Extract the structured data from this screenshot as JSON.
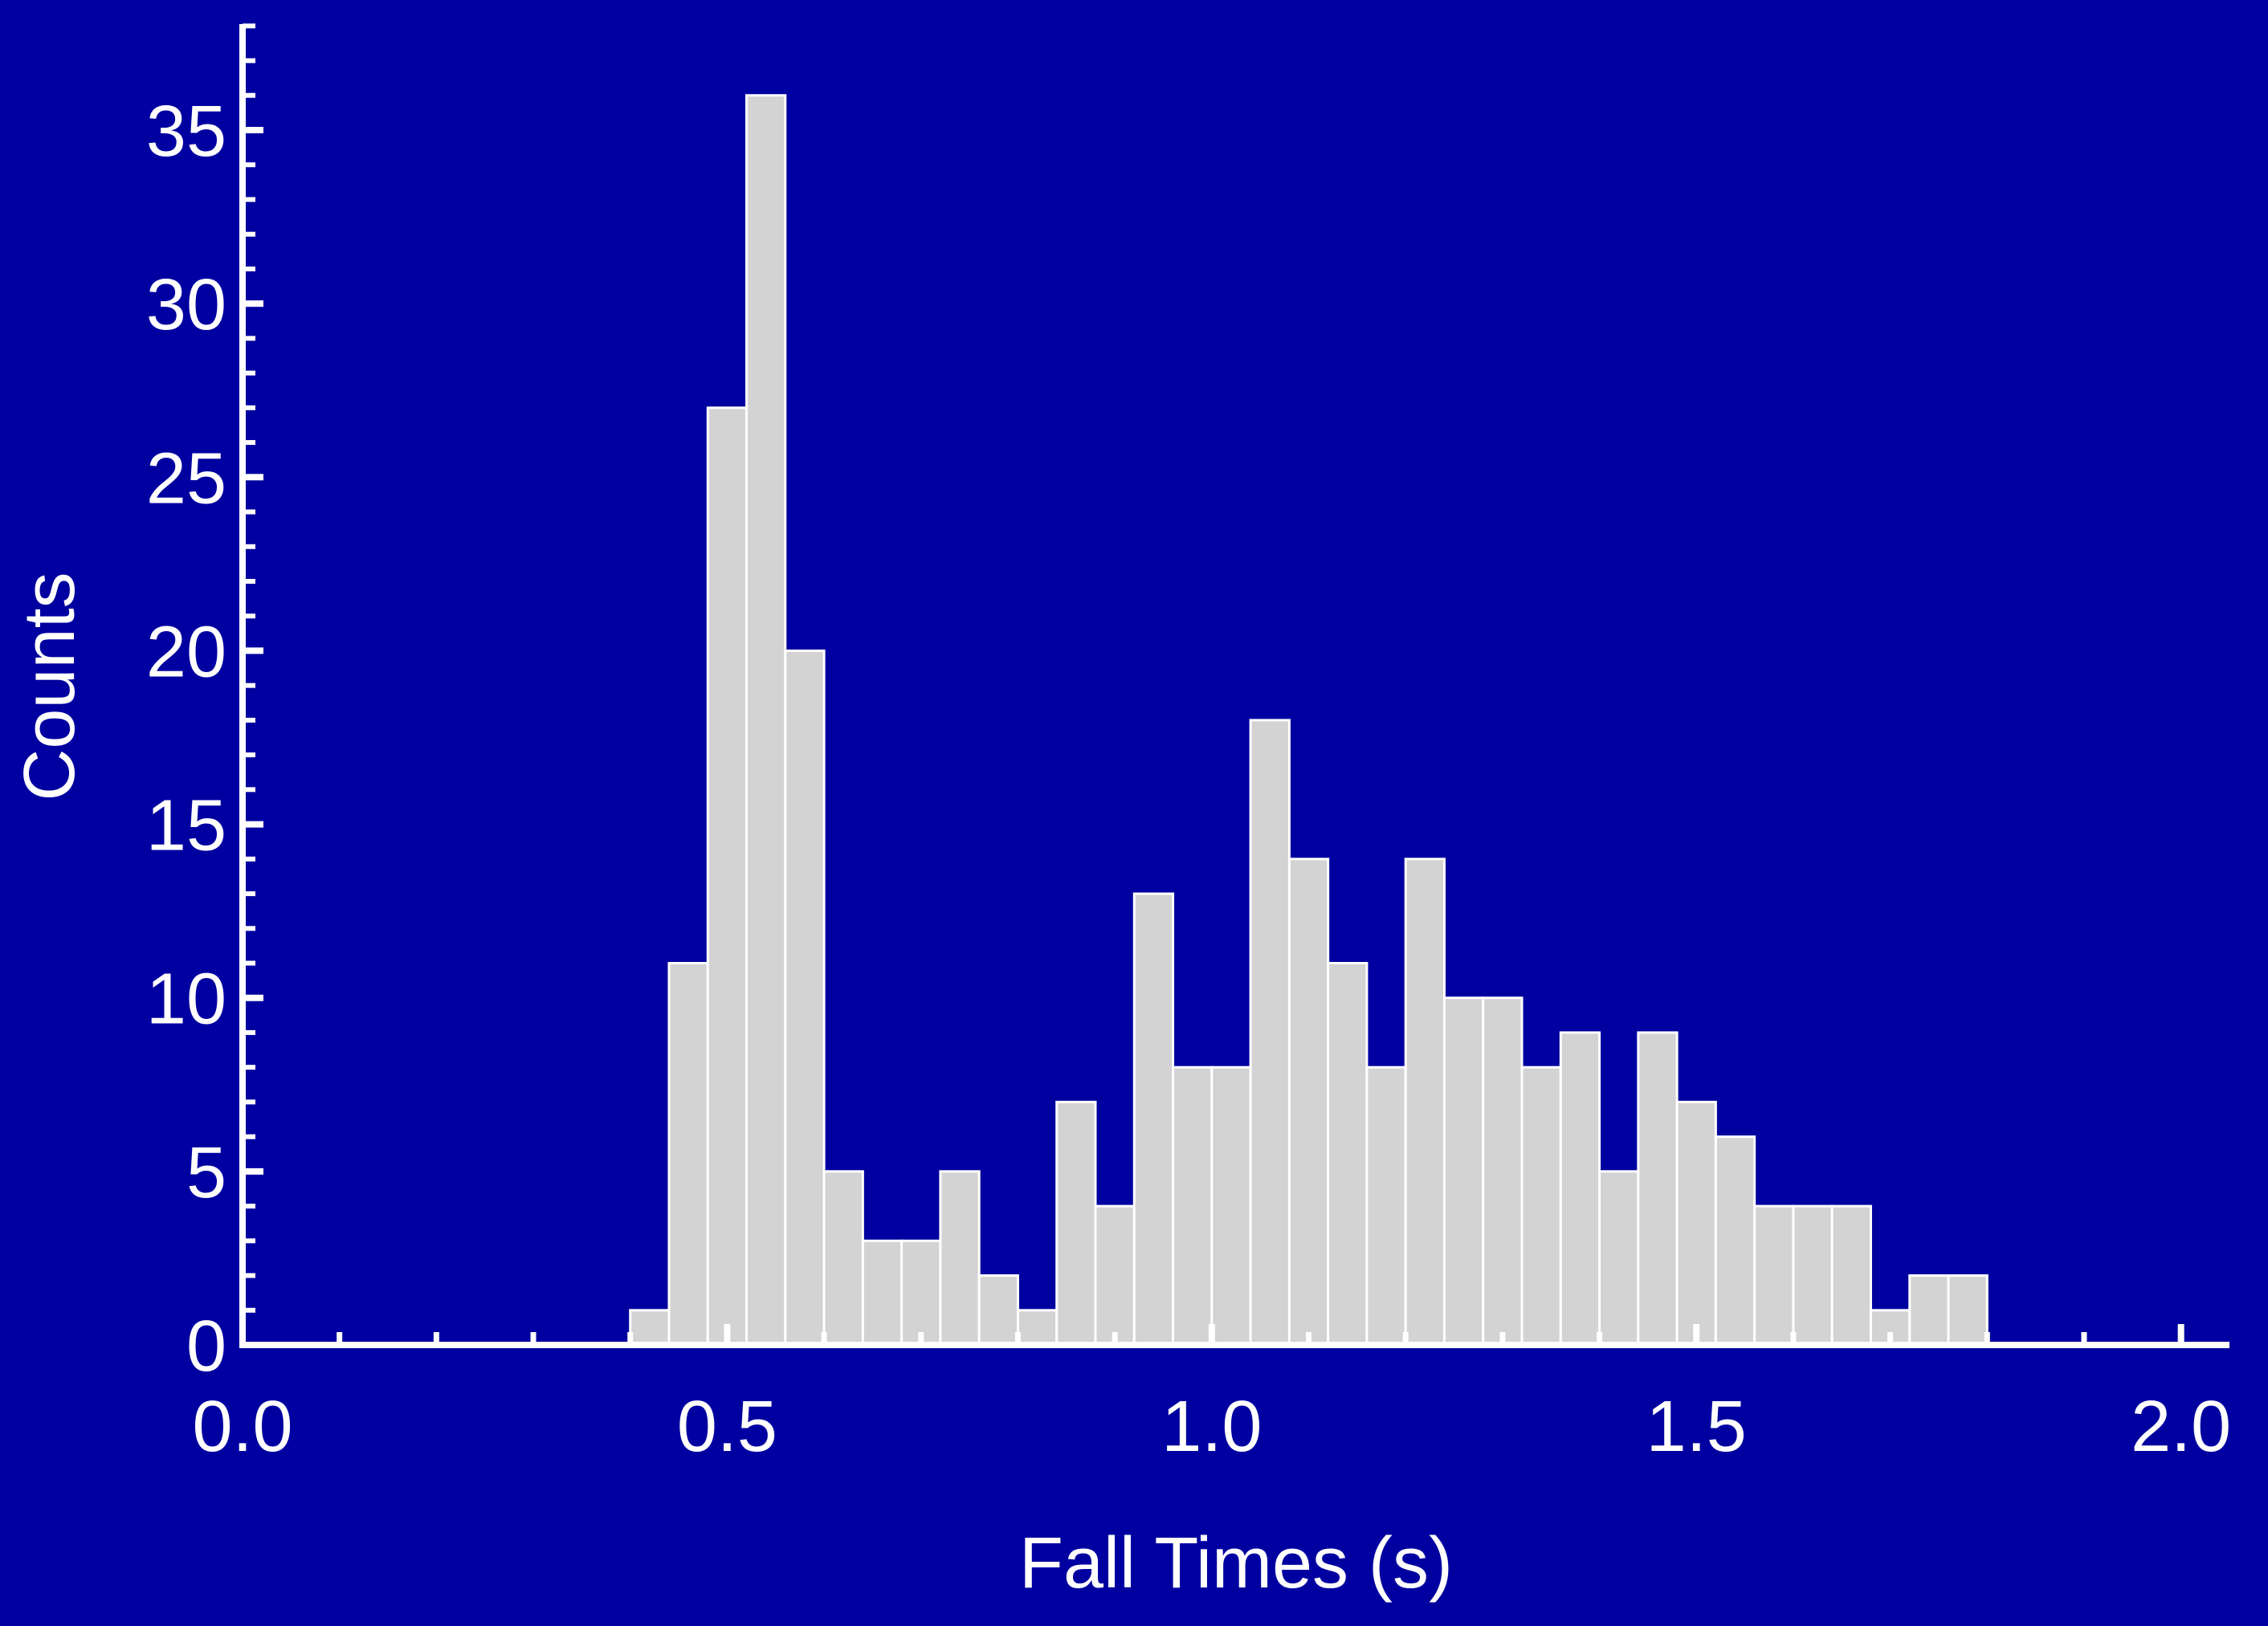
{
  "chart_data": {
    "type": "bar",
    "title": "",
    "xlabel": "Fall Times (s)",
    "ylabel": "Counts",
    "xlim": [
      0.0,
      2.05
    ],
    "ylim": [
      0,
      39
    ],
    "x_tick_labels": [
      "0.0",
      "0.5",
      "1.0",
      "1.5",
      "2.0"
    ],
    "x_tick_values": [
      0.0,
      0.5,
      1.0,
      1.5,
      2.0
    ],
    "y_tick_labels": [
      "0",
      "5",
      "10",
      "15",
      "20",
      "25",
      "30",
      "35"
    ],
    "y_tick_values": [
      0,
      5,
      10,
      15,
      20,
      25,
      30,
      35
    ],
    "bin_width": 0.04,
    "bins_start": [
      0.4,
      0.44,
      0.48,
      0.52,
      0.56,
      0.6,
      0.64,
      0.68,
      0.72,
      0.76,
      0.8,
      0.84,
      0.88,
      0.92,
      0.96,
      1.0,
      1.04,
      1.08,
      1.12,
      1.16,
      1.2,
      1.24,
      1.28,
      1.32,
      1.36,
      1.4,
      1.44,
      1.48,
      1.52,
      1.56,
      1.6,
      1.64,
      1.68,
      1.72,
      1.76
    ],
    "values": [
      1,
      11,
      27,
      36,
      20,
      5,
      3,
      3,
      5,
      2,
      1,
      7,
      4,
      13,
      8,
      8,
      18,
      14,
      11,
      8,
      14,
      10,
      10,
      8,
      9,
      5,
      9,
      7,
      6,
      4,
      4,
      4,
      1,
      2,
      2
    ],
    "grid": false,
    "legend": "none",
    "colors": {
      "background": "#0000a0",
      "bar_fill": "#d3d3d3",
      "bar_edge": "#ffffff",
      "axes": "#ffffff",
      "text": "#ffffff"
    }
  }
}
